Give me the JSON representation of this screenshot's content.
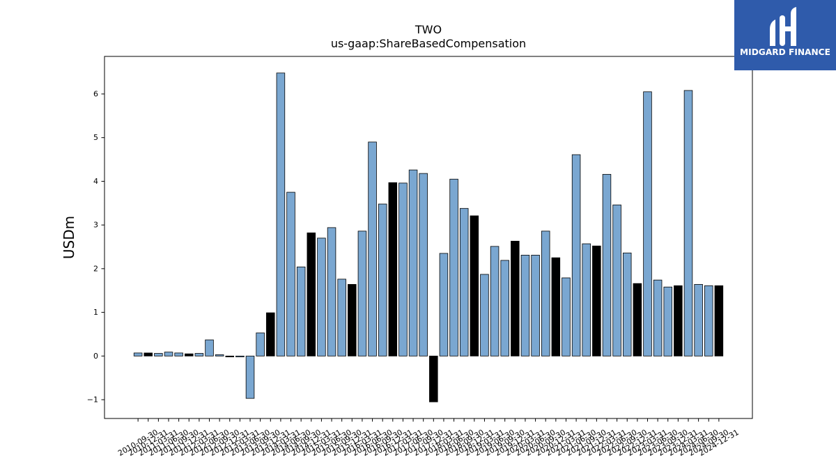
{
  "logo": {
    "text": "MIDGARD FINANCE",
    "icon": "midgard-logo-icon",
    "background": "#2f5bab"
  },
  "chart_data": {
    "type": "bar",
    "title": "TWO",
    "subtitle": "us-gaap:ShareBasedCompensation",
    "ylabel": "USDm",
    "ylim": [
      -1.43,
      6.86
    ],
    "yticks": [
      -1,
      0,
      1,
      2,
      3,
      4,
      5,
      6
    ],
    "ytick_labels": [
      "−1",
      "0",
      "1",
      "2",
      "3",
      "4",
      "5",
      "6"
    ],
    "grid": false,
    "categories": [
      "2010-09-30",
      "2010-12-31",
      "2011-03-31",
      "2011-06-30",
      "2011-09-30",
      "2011-12-31",
      "2012-03-31",
      "2012-06-30",
      "2012-09-30",
      "2012-12-31",
      "2013-03-31",
      "2013-06-30",
      "2013-09-30",
      "2013-12-31",
      "2014-03-31",
      "2014-06-30",
      "2014-09-30",
      "2014-12-31",
      "2015-03-31",
      "2015-06-30",
      "2015-09-30",
      "2015-12-31",
      "2016-03-31",
      "2016-06-30",
      "2016-09-30",
      "2016-12-31",
      "2017-03-31",
      "2017-06-30",
      "2017-09-30",
      "2017-12-31",
      "2018-03-31",
      "2018-06-30",
      "2018-09-30",
      "2018-12-31",
      "2019-03-31",
      "2019-06-30",
      "2019-09-30",
      "2019-12-31",
      "2020-03-31",
      "2020-06-30",
      "2020-09-30",
      "2020-12-31",
      "2021-03-31",
      "2021-06-30",
      "2021-09-30",
      "2021-12-31",
      "2022-03-31",
      "2022-06-30",
      "2022-09-30",
      "2022-12-31",
      "2023-03-31",
      "2023-06-30",
      "2023-09-30",
      "2023-12-31",
      "2024-03-31",
      "2024-06-30",
      "2024-09-30",
      "2024-12-31"
    ],
    "values": [
      0.07,
      0.07,
      0.06,
      0.09,
      0.07,
      0.05,
      0.06,
      0.37,
      0.03,
      -0.02,
      -0.02,
      -0.97,
      0.53,
      0.99,
      6.48,
      3.75,
      2.04,
      2.82,
      2.7,
      2.94,
      1.76,
      1.64,
      2.86,
      4.9,
      3.48,
      3.97,
      3.96,
      4.26,
      4.18,
      -1.05,
      2.35,
      4.05,
      3.38,
      3.21,
      1.87,
      2.51,
      2.19,
      2.63,
      2.31,
      2.31,
      2.86,
      2.25,
      1.79,
      4.61,
      2.57,
      2.52,
      4.16,
      3.46,
      2.36,
      1.66,
      6.05,
      1.74,
      1.58,
      1.61,
      6.08,
      1.64,
      1.61,
      1.61
    ],
    "colors": [
      "#7aa7d1",
      "#000000",
      "#7aa7d1",
      "#7aa7d1",
      "#7aa7d1",
      "#000000",
      "#7aa7d1",
      "#7aa7d1",
      "#7aa7d1",
      "#000000",
      "#7aa7d1",
      "#7aa7d1",
      "#7aa7d1",
      "#000000",
      "#7aa7d1",
      "#7aa7d1",
      "#7aa7d1",
      "#000000",
      "#7aa7d1",
      "#7aa7d1",
      "#7aa7d1",
      "#000000",
      "#7aa7d1",
      "#7aa7d1",
      "#7aa7d1",
      "#000000",
      "#7aa7d1",
      "#7aa7d1",
      "#7aa7d1",
      "#000000",
      "#7aa7d1",
      "#7aa7d1",
      "#7aa7d1",
      "#000000",
      "#7aa7d1",
      "#7aa7d1",
      "#7aa7d1",
      "#000000",
      "#7aa7d1",
      "#7aa7d1",
      "#7aa7d1",
      "#000000",
      "#7aa7d1",
      "#7aa7d1",
      "#7aa7d1",
      "#000000",
      "#7aa7d1",
      "#7aa7d1",
      "#7aa7d1",
      "#000000",
      "#7aa7d1",
      "#7aa7d1",
      "#7aa7d1",
      "#000000",
      "#7aa7d1",
      "#7aa7d1",
      "#7aa7d1",
      "#000000"
    ],
    "edge_color": "#000000"
  }
}
